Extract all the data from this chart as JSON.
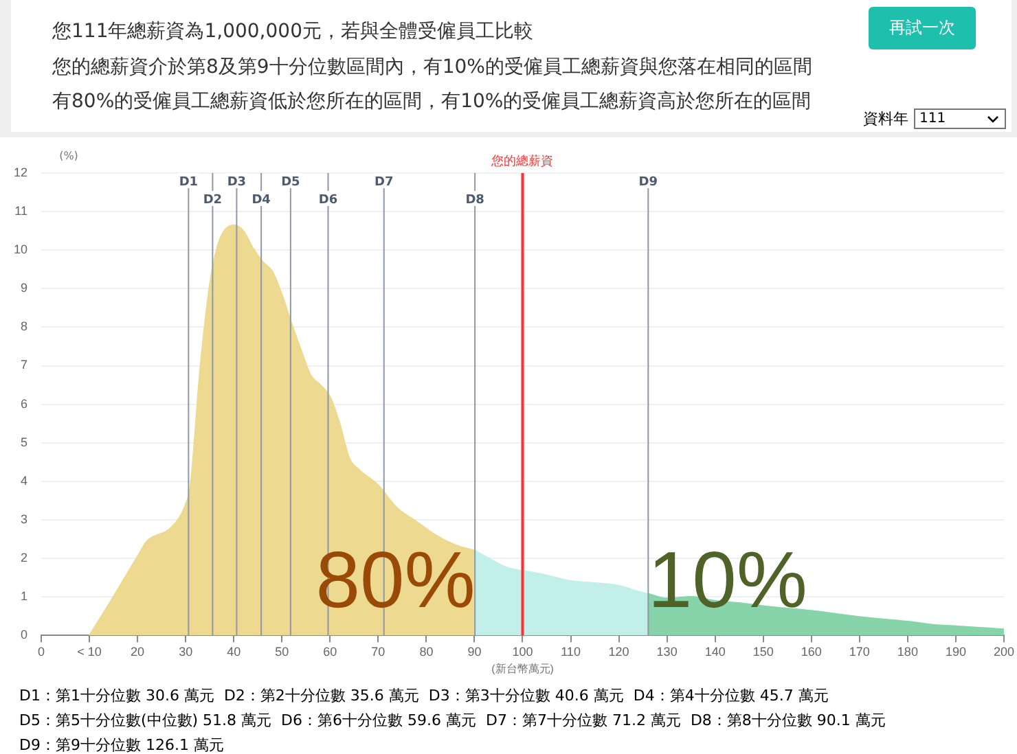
{
  "chart_data": {
    "type": "area",
    "title": "您111年總薪資為1,000,000元，若與全體受僱員工比較",
    "subtitle": "您的總薪資介於第8及第9十分位數區間內，有10%的受僱員工總薪資與您落在相同的區間",
    "xlabel": "(新台幣萬元)",
    "ylabel": "(%)",
    "series": [
      {
        "color": "#edd98f",
        "x": [
          10,
          14,
          20,
          22,
          27,
          30,
          31,
          33,
          35,
          36.5,
          38,
          40,
          42,
          44,
          46,
          48,
          50,
          52,
          54,
          56,
          58,
          60,
          62,
          64,
          66,
          70,
          74,
          78,
          82,
          86,
          90.1
        ],
        "values": [
          0,
          0.8,
          2.05,
          2.45,
          2.8,
          3.4,
          3.9,
          6.9,
          9.1,
          10.05,
          10.5,
          10.65,
          10.5,
          10.05,
          9.7,
          9.45,
          8.85,
          8.1,
          7.4,
          6.75,
          6.5,
          6.2,
          5.5,
          4.6,
          4.3,
          3.9,
          3.3,
          2.95,
          2.6,
          2.35,
          2.2
        ]
      },
      {
        "color": "#c3efea",
        "x": [
          90.1,
          97,
          100,
          105,
          110,
          115,
          120,
          124,
          126.1
        ],
        "values": [
          2.2,
          1.75,
          1.68,
          1.56,
          1.41,
          1.36,
          1.29,
          1.14,
          1.08
        ]
      },
      {
        "color": "#88d4aa",
        "x": [
          126.1,
          130,
          135,
          140,
          145,
          150,
          160,
          170,
          180,
          185,
          190,
          200
        ],
        "values": [
          1.08,
          0.96,
          1.0,
          0.9,
          0.84,
          0.76,
          0.64,
          0.48,
          0.36,
          0.28,
          0.24,
          0.16
        ]
      }
    ],
    "xlim": [
      0,
      200
    ],
    "xticks": [
      0,
      {
        "value": 10,
        "label": "< 10"
      },
      20,
      30,
      40,
      50,
      60,
      70,
      80,
      90,
      100,
      110,
      120,
      130,
      140,
      150,
      160,
      170,
      180,
      190,
      200
    ],
    "ylim": [
      0,
      12
    ],
    "yticks": [
      0,
      1,
      2,
      3,
      4,
      5,
      6,
      7,
      8,
      9,
      10,
      11,
      12
    ],
    "grid": "y",
    "ref_lines": [
      {
        "axis": "x",
        "value": 30.6,
        "label": "D1",
        "color": "#8f98a6"
      },
      {
        "axis": "x",
        "value": 35.6,
        "label": "D2",
        "color": "#8f98a6"
      },
      {
        "axis": "x",
        "value": 40.6,
        "label": "D3",
        "color": "#8f98a6"
      },
      {
        "axis": "x",
        "value": 45.7,
        "label": "D4",
        "color": "#8f98a6"
      },
      {
        "axis": "x",
        "value": 51.8,
        "label": "D5",
        "color": "#8f98a6"
      },
      {
        "axis": "x",
        "value": 59.6,
        "label": "D6",
        "color": "#8f98a6"
      },
      {
        "axis": "x",
        "value": 71.2,
        "label": "D7",
        "color": "#8f98a6"
      },
      {
        "axis": "x",
        "value": 90.1,
        "label": "D8",
        "color": "#8f98a6"
      },
      {
        "axis": "x",
        "value": 126.1,
        "label": "D9",
        "color": "#8f98a6"
      },
      {
        "axis": "x",
        "value": 100,
        "label": "您的總薪資",
        "color": "#ff3030"
      }
    ],
    "annotations": [
      "80%",
      "10%",
      "有80%的受僱員工總薪資低於您所在的區間，有10%的受僱員工總薪資高於您所在的區間",
      "再試一次",
      "資料年",
      "111",
      "D1：第1十分位數 30.6 萬元",
      "D2：第2十分位數 35.6 萬元",
      "D3：第3十分位數 40.6 萬元",
      "D4：第4十分位數 45.7 萬元",
      "D5：第5十分位數(中位數) 51.8 萬元",
      "D6：第6十分位數 59.6 萬元",
      "D7：第7十分位數 71.2 萬元",
      "D8：第8十分位數 90.1 萬元",
      "D9：第9十分位數 126.1 萬元"
    ]
  }
}
